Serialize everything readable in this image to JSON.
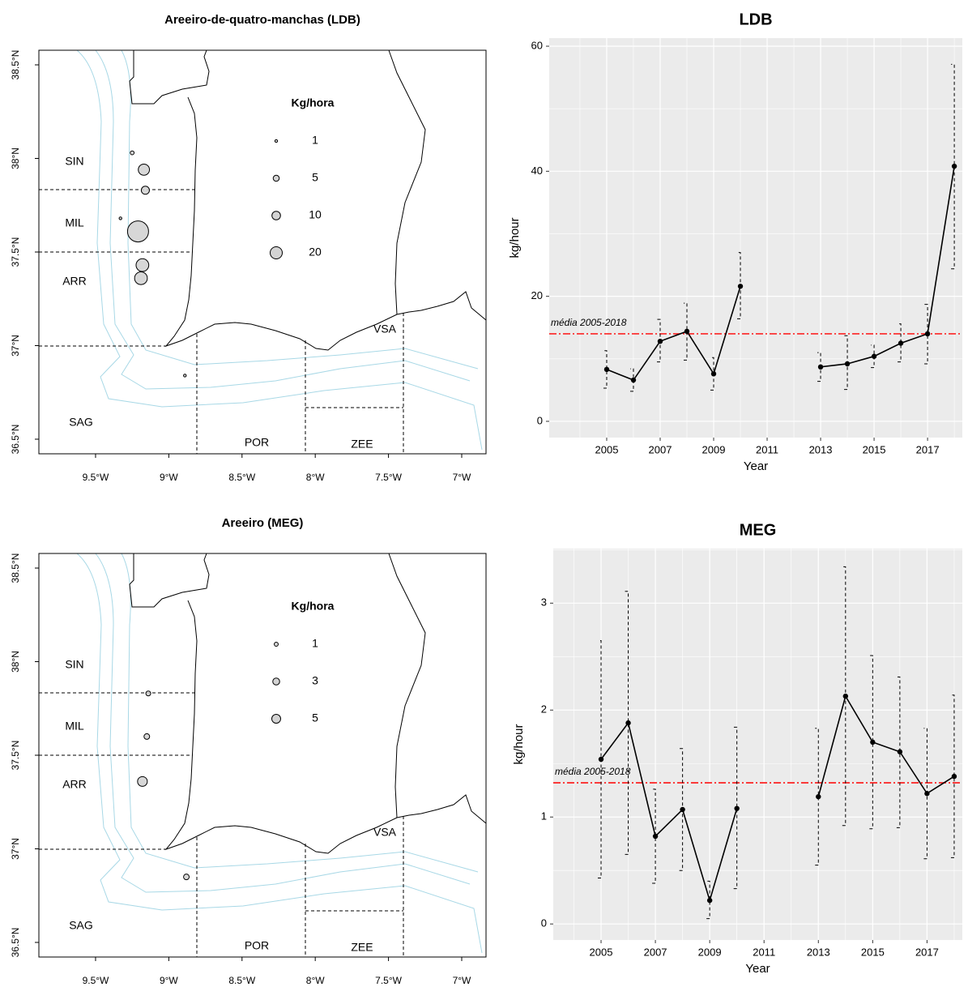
{
  "chart_data": [
    {
      "type": "map",
      "title": "Areeiro-de-quatro-manchas (LDB)",
      "xlim": [
        -9.887,
        -6.834
      ],
      "ylim": [
        36.422,
        38.578
      ],
      "xticks": [
        {
          "value": -9.5,
          "label": "9.5°W"
        },
        {
          "value": -9,
          "label": "9°W"
        },
        {
          "value": -8.5,
          "label": "8.5°W"
        },
        {
          "value": -8,
          "label": "8°W"
        },
        {
          "value": -7.5,
          "label": "7.5°W"
        },
        {
          "value": -7,
          "label": "7°W"
        }
      ],
      "yticks": [
        {
          "value": 36.5,
          "label": "36.5°N"
        },
        {
          "value": 37,
          "label": "37°N"
        },
        {
          "value": 37.5,
          "label": "37.5°N"
        },
        {
          "value": 38,
          "label": "38°N"
        },
        {
          "value": 38.5,
          "label": "38.5°N"
        }
      ],
      "regions": [
        "SIN",
        "MIL",
        "ARR",
        "SAG",
        "POR",
        "ZEE",
        "VSA"
      ],
      "legend_title": "Kg/hora",
      "legend_values": [
        1,
        5,
        10,
        20
      ],
      "color": "#d3d3d3",
      "points": {
        "lon": [
          -9.17,
          -9.16,
          -9.21,
          -9.18,
          -9.19,
          -9.25,
          -9.33,
          -8.89
        ],
        "lat": [
          37.94,
          37.83,
          37.61,
          37.43,
          37.36,
          38.03,
          37.68,
          36.84
        ],
        "values": [
          17,
          9,
          60,
          22,
          22,
          2,
          1,
          1
        ]
      }
    },
    {
      "type": "line",
      "title": "LDB",
      "xlabel": "Year",
      "ylabel": "kg/hour",
      "x": [
        2005,
        2006,
        2007,
        2008,
        2009,
        2010,
        2011,
        2012,
        2013,
        2014,
        2015,
        2016,
        2017,
        2018
      ],
      "values": [
        8.3,
        6.6,
        12.8,
        14.4,
        7.6,
        21.6,
        null,
        null,
        8.7,
        9.2,
        10.4,
        12.5,
        14.0,
        40.8
      ],
      "lower": [
        5.3,
        4.8,
        9.5,
        9.8,
        5.0,
        16.4,
        null,
        null,
        6.4,
        5.1,
        8.6,
        9.5,
        9.2,
        24.4
      ],
      "upper": [
        11.3,
        8.4,
        16.3,
        18.9,
        10.2,
        27.0,
        null,
        null,
        11.0,
        13.7,
        12.2,
        15.6,
        18.7,
        57.1
      ],
      "color": "#000000",
      "mean": 14,
      "mean_label": "média 2005-2018",
      "mean_color": "#ff0000",
      "xlim": [
        2002.85,
        2018.3
      ],
      "xticks": [
        2005,
        2007,
        2009,
        2011,
        2013,
        2015,
        2017
      ],
      "ylim": [
        -2.6,
        61.3
      ],
      "yticks": [
        0,
        20,
        40,
        60
      ],
      "grid": true
    },
    {
      "type": "map",
      "title": "Areeiro (MEG)",
      "xlim": [
        -9.887,
        -6.834
      ],
      "ylim": [
        36.422,
        38.578
      ],
      "xticks": [
        {
          "value": -9.5,
          "label": "9.5°W"
        },
        {
          "value": -9,
          "label": "9°W"
        },
        {
          "value": -8.5,
          "label": "8.5°W"
        },
        {
          "value": -8,
          "label": "8°W"
        },
        {
          "value": -7.5,
          "label": "7.5°W"
        },
        {
          "value": -7,
          "label": "7°W"
        }
      ],
      "yticks": [
        {
          "value": 36.5,
          "label": "36.5°N"
        },
        {
          "value": 37,
          "label": "37°N"
        },
        {
          "value": 37.5,
          "label": "37.5°N"
        },
        {
          "value": 38,
          "label": "38°N"
        },
        {
          "value": 38.5,
          "label": "38.5°N"
        }
      ],
      "regions": [
        "SIN",
        "MIL",
        "ARR",
        "SAG",
        "POR",
        "ZEE",
        "VSA"
      ],
      "legend_title": "Kg/hora",
      "legend_values": [
        1,
        3,
        5
      ],
      "color": "#d3d3d3",
      "points": {
        "lon": [
          -9.14,
          -9.15,
          -9.18,
          -8.88
        ],
        "lat": [
          37.83,
          37.6,
          37.36,
          36.85
        ],
        "values": [
          1.5,
          2,
          6,
          2
        ]
      }
    },
    {
      "type": "line",
      "title": "MEG",
      "xlabel": "Year",
      "ylabel": "kg/hour",
      "x": [
        2005,
        2006,
        2007,
        2008,
        2009,
        2010,
        2011,
        2012,
        2013,
        2014,
        2015,
        2016,
        2017,
        2018
      ],
      "values": [
        1.54,
        1.88,
        0.82,
        1.07,
        0.22,
        1.08,
        null,
        null,
        1.19,
        2.13,
        1.7,
        1.61,
        1.22,
        1.38
      ],
      "lower": [
        0.43,
        0.65,
        0.38,
        0.5,
        0.05,
        0.33,
        null,
        null,
        0.55,
        0.92,
        0.89,
        0.9,
        0.61,
        0.62
      ],
      "upper": [
        2.65,
        3.11,
        1.26,
        1.64,
        0.4,
        1.84,
        null,
        null,
        1.83,
        3.34,
        2.51,
        2.31,
        1.83,
        2.14
      ],
      "color": "#000000",
      "mean": 1.32,
      "mean_label": "média 2005-2018",
      "mean_color": "#ff0000",
      "xlim": [
        2003.24,
        2018.3
      ],
      "xticks": [
        2005,
        2007,
        2009,
        2011,
        2013,
        2015,
        2017
      ],
      "ylim": [
        -0.15,
        3.51
      ],
      "yticks": [
        0,
        1,
        2,
        3
      ],
      "grid": true
    }
  ]
}
